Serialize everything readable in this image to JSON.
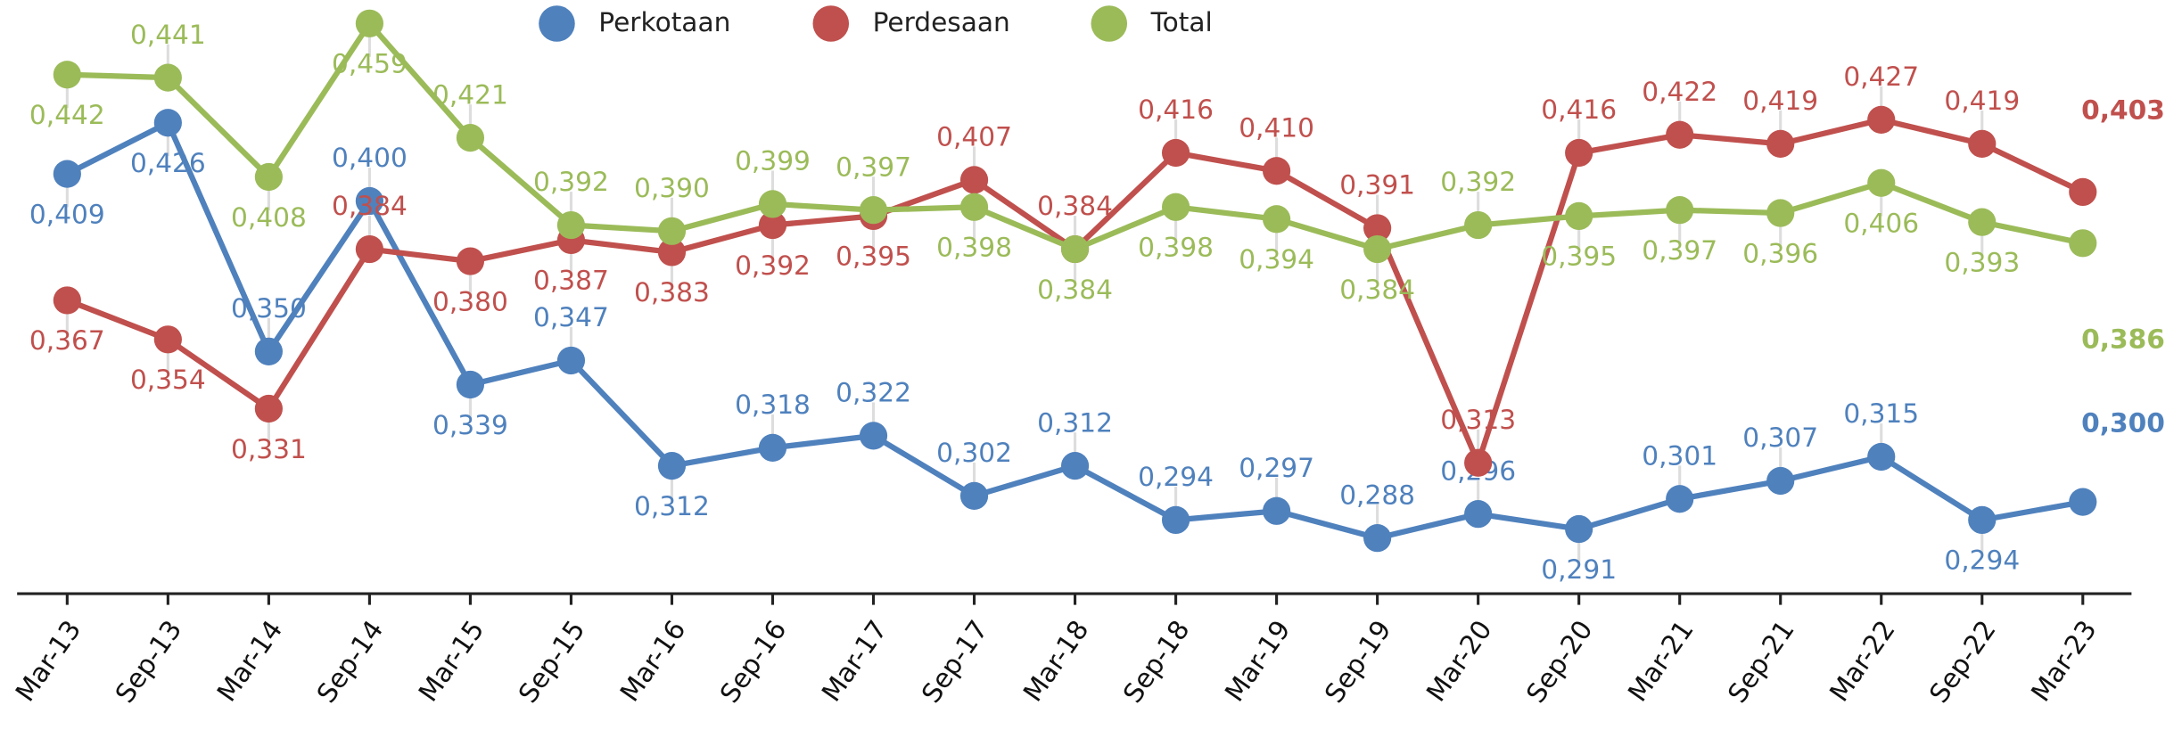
{
  "chart_data": {
    "type": "line",
    "categories": [
      "Mar-13",
      "Sep-13",
      "Mar-14",
      "Sep-14",
      "Mar-15",
      "Sep-15",
      "Mar-16",
      "Sep-16",
      "Mar-17",
      "Sep-17",
      "Mar-18",
      "Sep-18",
      "Mar-19",
      "Sep-19",
      "Mar-20",
      "Sep-20",
      "Mar-21",
      "Sep-21",
      "Mar-22",
      "Sep-22",
      "Mar-23"
    ],
    "ylim": [
      0.2695,
      0.4668
    ],
    "legend": "top",
    "series": [
      {
        "name": "Perkotaan",
        "color": "#4f81bd",
        "values": [
          0.409,
          0.426,
          0.35,
          0.4,
          0.339,
          0.347,
          0.312,
          0.318,
          0.322,
          0.302,
          0.312,
          0.294,
          0.297,
          0.288,
          0.296,
          0.291,
          0.301,
          0.307,
          0.315,
          0.294,
          0.3
        ],
        "value_labels": [
          "0,409",
          "0,426",
          "0,350",
          "0,400",
          "0,339",
          "0,347",
          "0,312",
          "0,318",
          "0,322",
          "0,302",
          "0,312",
          "0,294",
          "0,297",
          "0,288",
          "0,296",
          "0,291",
          "0,301",
          "0,307",
          "0,315",
          "0,294",
          "0,300"
        ]
      },
      {
        "name": "Perdesaan",
        "color": "#c0504d",
        "values": [
          0.367,
          0.354,
          0.331,
          0.384,
          0.38,
          0.387,
          0.383,
          0.392,
          0.395,
          0.407,
          0.384,
          0.416,
          0.41,
          0.391,
          0.313,
          0.416,
          0.422,
          0.419,
          0.427,
          0.419,
          0.403
        ],
        "value_labels": [
          "0,367",
          "0,354",
          "0,331",
          "0,384",
          "0,380",
          "0,387",
          "0,383",
          "0,392",
          "0,395",
          "0,407",
          "0,384",
          "0,416",
          "0,410",
          "0,391",
          "0,313",
          "0,416",
          "0,422",
          "0,419",
          "0,427",
          "0,419",
          "0,403"
        ]
      },
      {
        "name": "Total",
        "color": "#9bbb59",
        "values": [
          0.442,
          0.441,
          0.408,
          0.459,
          0.421,
          0.392,
          0.39,
          0.399,
          0.397,
          0.398,
          0.384,
          0.398,
          0.394,
          0.384,
          0.392,
          0.395,
          0.397,
          0.396,
          0.406,
          0.393,
          0.386
        ],
        "value_labels": [
          "0,442",
          "0,441",
          "0,408",
          "0,459",
          "0,421",
          "0,392",
          "0,390",
          "0,399",
          "0,397",
          "0,398",
          "0,384",
          "0,398",
          "0,394",
          "0,384",
          "0,392",
          "0,395",
          "0,397",
          "0,396",
          "0,406",
          "0,393",
          "0,386"
        ]
      }
    ]
  }
}
